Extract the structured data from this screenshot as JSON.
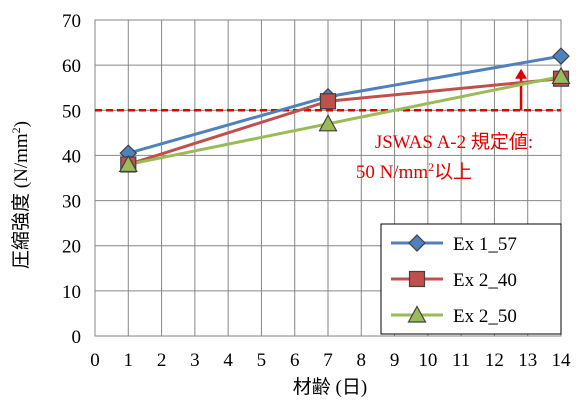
{
  "chart_data": {
    "type": "line",
    "x": [
      1,
      7,
      14
    ],
    "xlim": [
      0,
      14
    ],
    "ylim": [
      0,
      70
    ],
    "xticks": [
      "0",
      "1",
      "2",
      "3",
      "4",
      "5",
      "6",
      "7",
      "8",
      "9",
      "10",
      "11",
      "12",
      "13",
      "14"
    ],
    "yticks": [
      "0",
      "10",
      "20",
      "30",
      "40",
      "50",
      "60",
      "70"
    ],
    "xlabel": "材齢 (日)",
    "ylabel": "圧縮強度 (N/mm²)",
    "grid": true,
    "legend_position": "bottom-right",
    "series": [
      {
        "name": "Ex 1_57",
        "values": [
          40.5,
          53.0,
          62.0
        ],
        "color": "#4f81bd",
        "marker": "diamond",
        "marker_fill": "#4f81bd"
      },
      {
        "name": "Ex 2_40",
        "values": [
          38.0,
          52.0,
          57.0
        ],
        "color": "#c0504d",
        "marker": "square",
        "marker_fill": "#c0504d"
      },
      {
        "name": "Ex 2_50",
        "values": [
          38.0,
          47.0,
          57.5
        ],
        "color": "#9bbb59",
        "marker": "triangle",
        "marker_fill": "#9bbb59"
      }
    ],
    "reference_line": {
      "y": 50,
      "color": "#e00000"
    },
    "annotation": {
      "line1": "JSWAS A-2 規定値:",
      "line2_prefix": "50 N/mm",
      "line2_sup": "2",
      "line2_suffix": "以上",
      "color": "#e00000"
    }
  }
}
